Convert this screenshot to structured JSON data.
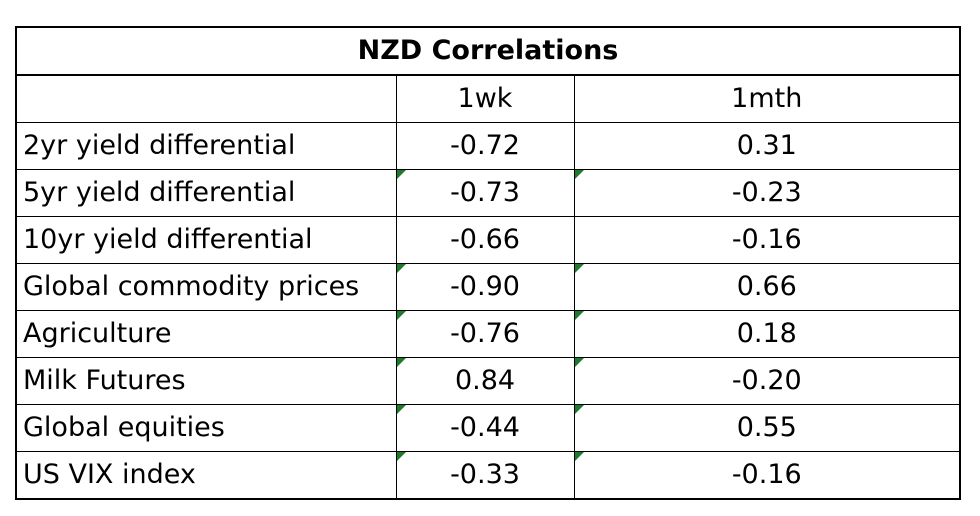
{
  "table": {
    "title": "NZD Correlations",
    "header": {
      "blank": "",
      "col1": "1wk",
      "col2": "1mth"
    },
    "rows": [
      {
        "label": "2yr yield differential",
        "wk": "-0.72",
        "mth": "0.31",
        "flag_wk": false,
        "flag_mth": false
      },
      {
        "label": "5yr yield differential",
        "wk": "-0.73",
        "mth": "-0.23",
        "flag_wk": true,
        "flag_mth": true
      },
      {
        "label": "10yr yield differential",
        "wk": "-0.66",
        "mth": "-0.16",
        "flag_wk": false,
        "flag_mth": false
      },
      {
        "label": "Global commodity prices",
        "wk": "-0.90",
        "mth": "0.66",
        "flag_wk": true,
        "flag_mth": true
      },
      {
        "label": "Agriculture",
        "wk": "-0.76",
        "mth": "0.18",
        "flag_wk": true,
        "flag_mth": true
      },
      {
        "label": "Milk Futures",
        "wk": "0.84",
        "mth": "-0.20",
        "flag_wk": true,
        "flag_mth": true
      },
      {
        "label": "Global equities",
        "wk": "-0.44",
        "mth": "0.55",
        "flag_wk": true,
        "flag_mth": true
      },
      {
        "label": "US VIX index",
        "wk": "-0.33",
        "mth": "-0.16",
        "flag_wk": true,
        "flag_mth": true
      }
    ],
    "flag_color": "#1f7a2e"
  }
}
